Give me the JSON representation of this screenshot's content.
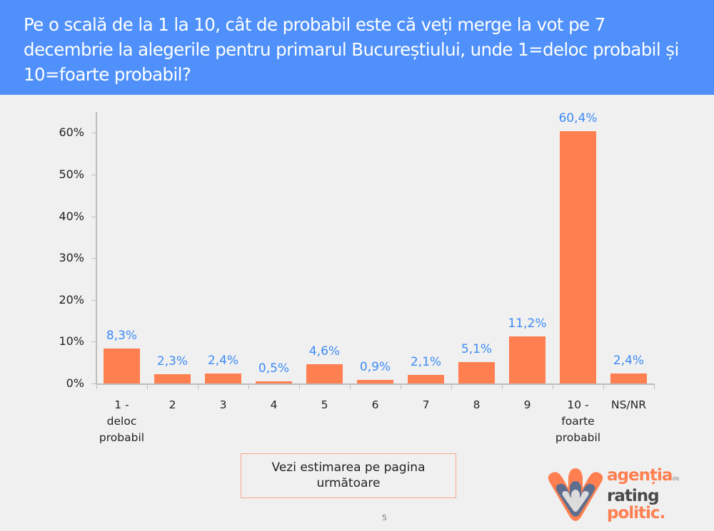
{
  "header": {
    "title": "Pe o scală de la 1 la 10, cât de probabil este că veți merge la vot pe 7 decembrie la alegerile pentru primarul Bucureștiului, unde 1=deloc probabil și 10=foarte probabil?"
  },
  "colors": {
    "header_bg": "#4f90fb",
    "bar": "#ff7f50",
    "data_label": "#3d8bf5",
    "background": "#f0f0f0"
  },
  "chart_data": {
    "type": "bar",
    "title": "Pe o scală de la 1 la 10, cât de probabil este că veți merge la vot pe 7 decembrie la alegerile pentru primarul Bucureștiului, unde 1=deloc probabil și 10=foarte probabil?",
    "categories": [
      "1 - deloc probabil",
      "2",
      "3",
      "4",
      "5",
      "6",
      "7",
      "8",
      "9",
      "10 - foarte probabil",
      "NS/NR"
    ],
    "values": [
      8.3,
      2.3,
      2.4,
      0.5,
      4.6,
      0.9,
      2.1,
      5.1,
      11.2,
      60.4,
      2.4
    ],
    "data_labels": [
      "8,3%",
      "2,3%",
      "2,4%",
      "0,5%",
      "4,6%",
      "0,9%",
      "2,1%",
      "5,1%",
      "11,2%",
      "60,4%",
      "2,4%"
    ],
    "xlabel": "",
    "ylabel": "",
    "ylim": [
      0,
      65
    ],
    "y_ticks": [
      "0%",
      "10%",
      "20%",
      "30%",
      "40%",
      "50%",
      "60%"
    ],
    "grid": false,
    "legend": null
  },
  "axis": {
    "y_labels": [
      "60%",
      "50%",
      "40%",
      "30%",
      "20%",
      "10%",
      "0%"
    ]
  },
  "categories_display": [
    [
      "1 -",
      "deloc",
      "probabil"
    ],
    [
      "2"
    ],
    [
      "3"
    ],
    [
      "4"
    ],
    [
      "5"
    ],
    [
      "6"
    ],
    [
      "7"
    ],
    [
      "8"
    ],
    [
      "9"
    ],
    [
      "10 -",
      "foarte",
      "probabil"
    ],
    [
      "NS/NR"
    ]
  ],
  "note": {
    "line1": "Vezi estimarea pe pagina",
    "line2": "următoare"
  },
  "page_number": "5",
  "logo": {
    "line1": "agenția",
    "line1_small": "de",
    "line2": "rating",
    "line3": "politic."
  }
}
